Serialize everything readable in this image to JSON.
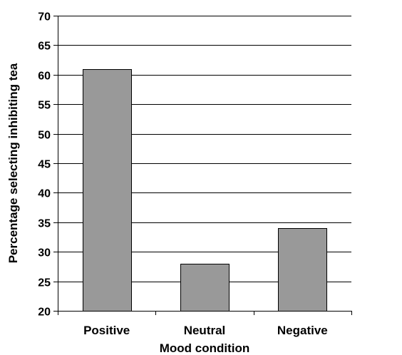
{
  "chart_data": {
    "type": "bar",
    "categories": [
      "Positive",
      "Neutral",
      "Negative"
    ],
    "values": [
      61,
      28,
      34
    ],
    "xlabel": "Mood condition",
    "ylabel": "Percentage selecting inhibiting tea",
    "ylim": [
      20,
      70
    ],
    "yticks": [
      20,
      25,
      30,
      35,
      40,
      45,
      50,
      55,
      60,
      65,
      70
    ],
    "grid": true,
    "legend": "none",
    "bar_color": "#999999",
    "bar_edge_color": "#000000"
  }
}
